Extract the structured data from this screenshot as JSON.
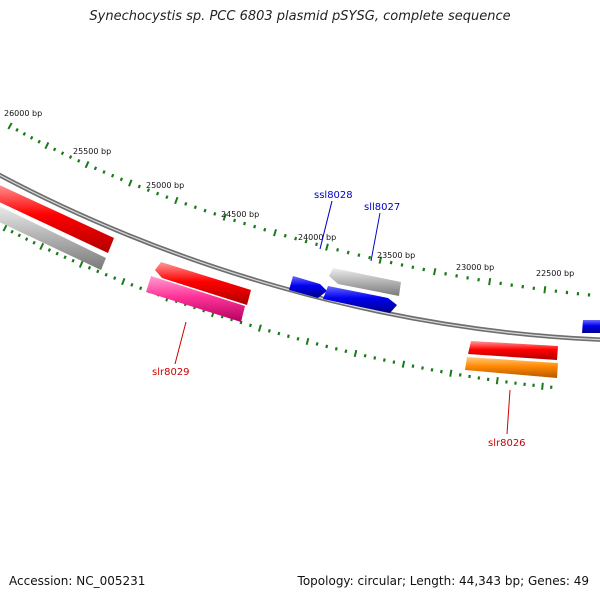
{
  "title": "Synechocystis sp. PCC 6803 plasmid pSYSG, complete sequence",
  "footer": {
    "accession": "Accession: NC_005231",
    "summary": "Topology: circular; Length: 44,343 bp; Genes: 49"
  },
  "ruler": {
    "labels": [
      "26000 bp",
      "25500 bp",
      "25000 bp",
      "24500 bp",
      "24000 bp",
      "23500 bp",
      "23000 bp",
      "22500 bp"
    ]
  },
  "genes": [
    {
      "label": "ssl8028",
      "strand": "forward",
      "color": "#0000ee"
    },
    {
      "label": "sll8027",
      "strand": "reverse",
      "color": "#b3b3b3"
    },
    {
      "label": "slr8029",
      "strand": "forward",
      "color": "#ff3399"
    },
    {
      "label": "slr8026",
      "strand": "forward",
      "color": "#ff8800"
    }
  ],
  "colors": {
    "cds": "#ff0000",
    "label_forward": "#cc0000",
    "label_reverse": "#0000cc",
    "tick": "#1a7a1a",
    "backbone": "#7a7a7a"
  }
}
